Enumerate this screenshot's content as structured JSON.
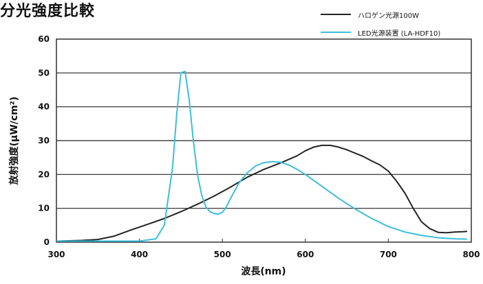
{
  "chart_data": {
    "type": "line",
    "title": "分光強度比較",
    "xlabel": "波長(nm)",
    "ylabel": "放射強度(μW/cm²)",
    "xlim": [
      300,
      800
    ],
    "ylim": [
      0,
      60
    ],
    "xticks": [
      300,
      400,
      500,
      600,
      700,
      800
    ],
    "yticks": [
      0,
      10,
      20,
      30,
      40,
      50,
      60
    ],
    "grid": "horizontal",
    "legend_position": "top-right",
    "series": [
      {
        "name": "ハロゲン光源100W",
        "color": "#222222",
        "x": [
          300,
          330,
          350,
          370,
          390,
          410,
          430,
          450,
          470,
          490,
          510,
          530,
          550,
          570,
          590,
          600,
          610,
          620,
          630,
          640,
          650,
          660,
          670,
          680,
          690,
          700,
          710,
          720,
          730,
          740,
          750,
          760,
          770,
          780,
          790,
          795
        ],
        "y": [
          0.3,
          0.5,
          0.8,
          1.8,
          3.6,
          5.3,
          7.0,
          9.0,
          11.2,
          13.6,
          16.3,
          19.2,
          21.5,
          23.4,
          25.5,
          27.0,
          28.1,
          28.6,
          28.6,
          28.1,
          27.3,
          26.3,
          25.3,
          24.0,
          22.8,
          21.0,
          18.0,
          14.5,
          10.0,
          6.0,
          4.0,
          2.9,
          2.8,
          3.0,
          3.1,
          3.2
        ]
      },
      {
        "name": "LED光源装置 (LA-HDF10)",
        "color": "#3bbedb",
        "x": [
          300,
          350,
          400,
          420,
          430,
          440,
          445,
          450,
          455,
          460,
          465,
          470,
          475,
          480,
          485,
          490,
          495,
          500,
          505,
          510,
          520,
          530,
          540,
          550,
          560,
          570,
          580,
          590,
          600,
          620,
          640,
          660,
          680,
          700,
          720,
          740,
          760,
          780,
          795
        ],
        "y": [
          0.3,
          0.3,
          0.3,
          1.0,
          5.0,
          22.0,
          38.0,
          50.0,
          50.5,
          42.0,
          30.0,
          20.0,
          14.0,
          10.5,
          9.0,
          8.5,
          8.3,
          8.8,
          10.5,
          13.0,
          17.5,
          20.5,
          22.5,
          23.5,
          23.8,
          23.6,
          22.8,
          21.5,
          20.0,
          16.5,
          13.0,
          9.8,
          7.0,
          4.6,
          3.0,
          2.0,
          1.3,
          1.0,
          0.9
        ]
      }
    ]
  }
}
